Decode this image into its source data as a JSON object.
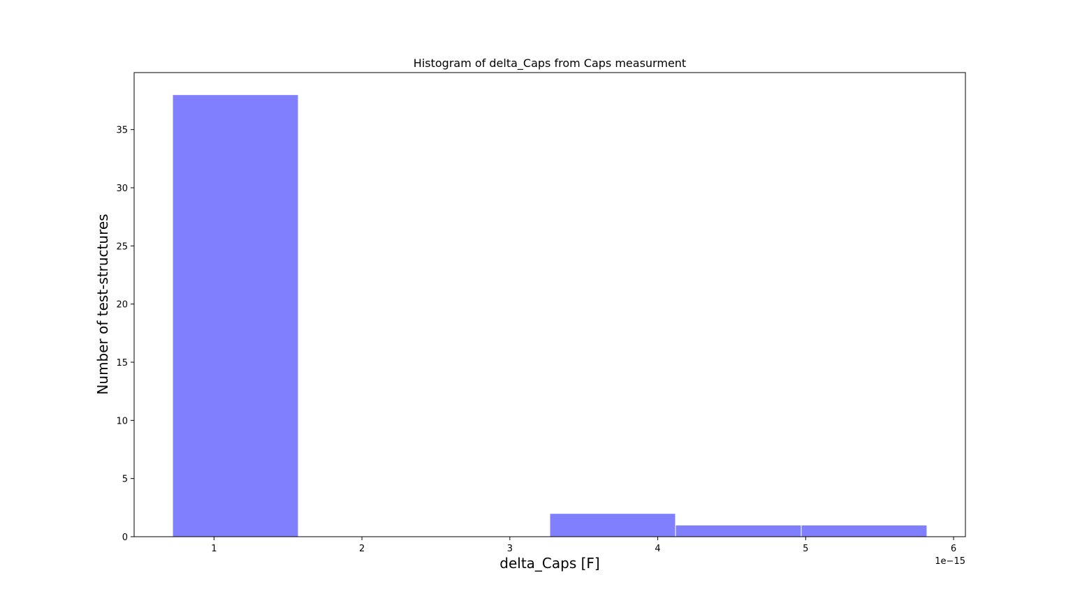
{
  "chart_data": {
    "type": "bar",
    "title": "Histogram of delta_Caps from Caps measurment",
    "xlabel": "delta_Caps [F]",
    "ylabel": "Number of test-structures",
    "x_offset_label": "1e−15",
    "x_scale": 1e-15,
    "xlim": [
      0.46,
      6.08
    ],
    "ylim": [
      0,
      39.9
    ],
    "x_ticks": [
      1,
      2,
      3,
      4,
      5,
      6
    ],
    "x_tick_labels": [
      "1",
      "2",
      "3",
      "4",
      "5",
      "6"
    ],
    "y_ticks": [
      0,
      5,
      10,
      15,
      20,
      25,
      30,
      35
    ],
    "y_tick_labels": [
      "0",
      "5",
      "10",
      "15",
      "20",
      "25",
      "30",
      "35"
    ],
    "bins": [
      {
        "x0": 0.72,
        "x1": 1.57,
        "count": 38
      },
      {
        "x0": 1.57,
        "x1": 2.42,
        "count": 0
      },
      {
        "x0": 2.42,
        "x1": 3.27,
        "count": 0
      },
      {
        "x0": 3.27,
        "x1": 4.12,
        "count": 2
      },
      {
        "x0": 4.12,
        "x1": 4.97,
        "count": 1
      },
      {
        "x0": 4.97,
        "x1": 5.82,
        "count": 1
      }
    ],
    "bar_color": "#8080ff",
    "bar_edge_color": "#ffffff",
    "grid": false,
    "legend": "none"
  }
}
